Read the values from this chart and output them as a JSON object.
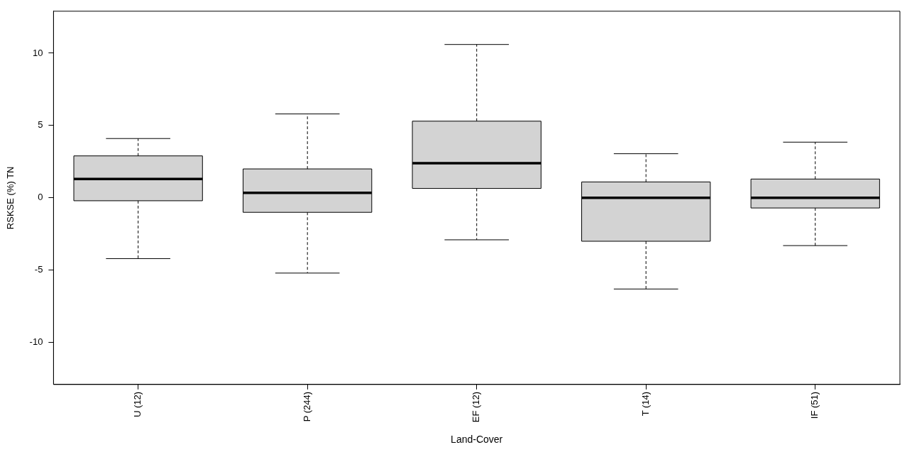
{
  "chart_data": {
    "type": "box",
    "xlabel": "Land-Cover",
    "ylabel": "RSKSE (%) TN",
    "categories": [
      "U (12)",
      "P (244)",
      "EF (12)",
      "T (14)",
      "IF (51)"
    ],
    "boxes": [
      {
        "low": -4.2,
        "q1": -0.2,
        "median": 1.3,
        "q3": 2.9,
        "high": 4.1
      },
      {
        "low": -5.2,
        "q1": -1.0,
        "median": 0.35,
        "q3": 2.0,
        "high": 5.8
      },
      {
        "low": -2.9,
        "q1": 0.65,
        "median": 2.4,
        "q3": 5.3,
        "high": 10.6
      },
      {
        "low": -6.3,
        "q1": -3.0,
        "median": 0,
        "q3": 1.1,
        "high": 3.05
      },
      {
        "low": -3.3,
        "q1": -0.7,
        "median": 0,
        "q3": 1.3,
        "high": 3.85
      }
    ],
    "color": "#d3d3d3",
    "ylim": [
      -12.9,
      12.9
    ],
    "yticks": [
      -10,
      -5,
      0,
      5,
      10
    ]
  }
}
